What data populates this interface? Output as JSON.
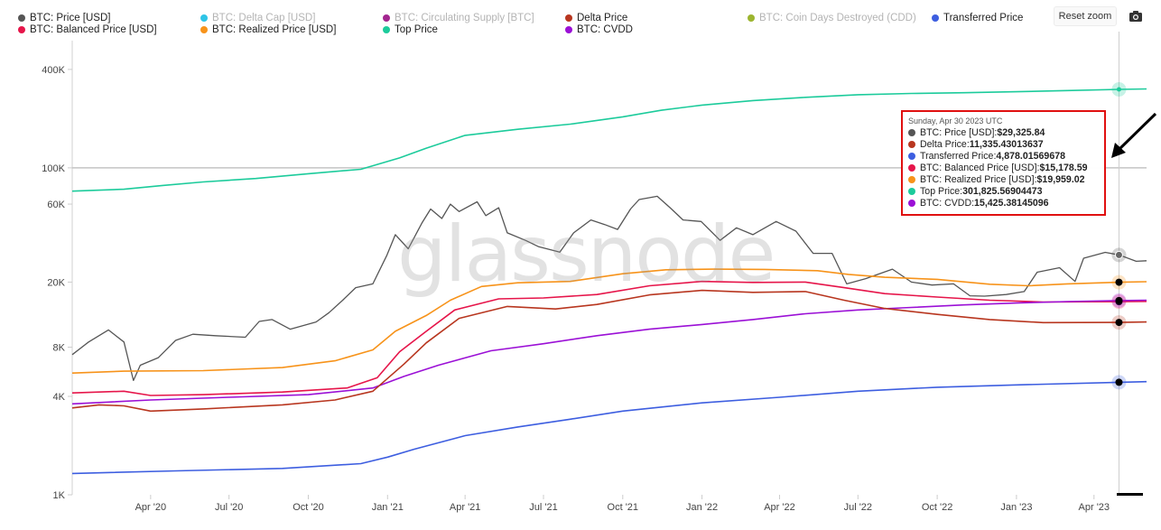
{
  "legend": [
    {
      "label": "BTC: Price [USD]",
      "color": "#555555",
      "enabled": true
    },
    {
      "label": "BTC: Delta Cap [USD]",
      "color": "#2ec4e6",
      "enabled": false
    },
    {
      "label": "BTC: Circulating Supply [BTC]",
      "color": "#a3258f",
      "enabled": false
    },
    {
      "label": "Delta Price",
      "color": "#b8361f",
      "enabled": true
    },
    {
      "label": "BTC: Coin Days Destroyed (CDD)",
      "color": "#9cb52f",
      "enabled": false
    },
    {
      "label": "Transferred Price",
      "color": "#3d5ee0",
      "enabled": true
    },
    {
      "label": "BTC: Balanced Price [USD]",
      "color": "#e6154a",
      "enabled": true
    },
    {
      "label": "BTC: Realized Price [USD]",
      "color": "#f7931a",
      "enabled": true
    },
    {
      "label": "Top Price",
      "color": "#1ccb9b",
      "enabled": true
    },
    {
      "label": "BTC: CVDD",
      "color": "#9b10d6",
      "enabled": true
    }
  ],
  "controls": {
    "reset_zoom_label": "Reset zoom",
    "camera_icon": "camera-icon"
  },
  "watermark": "glassnode",
  "tooltip": {
    "date": "Sunday, Apr 30 2023 UTC",
    "rows": [
      {
        "label": "BTC: Price [USD]",
        "value": "$29,325.84",
        "color": "#555555"
      },
      {
        "label": "Delta Price",
        "value": "11,335.43013637",
        "color": "#b8361f"
      },
      {
        "label": "Transferred Price",
        "value": "4,878.01569678",
        "color": "#3d5ee0"
      },
      {
        "label": "BTC: Balanced Price [USD]",
        "value": "$15,178.59",
        "color": "#e6154a"
      },
      {
        "label": "BTC: Realized Price [USD]",
        "value": "$19,959.02",
        "color": "#f7931a"
      },
      {
        "label": "Top Price",
        "value": "301,825.56904473",
        "color": "#1ccb9b"
      },
      {
        "label": "BTC: CVDD",
        "value": "15,425.38145096",
        "color": "#9b10d6"
      }
    ]
  },
  "chart_data": {
    "type": "line",
    "y_scale": "log",
    "ylim": [
      1000,
      600000
    ],
    "y_ticks": [
      {
        "value": 1000,
        "label": "1K"
      },
      {
        "value": 4000,
        "label": "4K"
      },
      {
        "value": 8000,
        "label": "8K"
      },
      {
        "value": 20000,
        "label": "20K"
      },
      {
        "value": 60000,
        "label": "60K"
      },
      {
        "value": 100000,
        "label": "100K"
      },
      {
        "value": 400000,
        "label": "400K"
      }
    ],
    "x_range": [
      "2020-01-01",
      "2023-06-01"
    ],
    "x_ticks": [
      {
        "date": "2020-04-01",
        "label": "Apr '20"
      },
      {
        "date": "2020-07-01",
        "label": "Jul '20"
      },
      {
        "date": "2020-10-01",
        "label": "Oct '20"
      },
      {
        "date": "2021-01-01",
        "label": "Jan '21"
      },
      {
        "date": "2021-04-01",
        "label": "Apr '21"
      },
      {
        "date": "2021-07-01",
        "label": "Jul '21"
      },
      {
        "date": "2021-10-01",
        "label": "Oct '21"
      },
      {
        "date": "2022-01-01",
        "label": "Jan '22"
      },
      {
        "date": "2022-04-01",
        "label": "Apr '22"
      },
      {
        "date": "2022-07-01",
        "label": "Jul '22"
      },
      {
        "date": "2022-10-01",
        "label": "Oct '22"
      },
      {
        "date": "2023-01-01",
        "label": "Jan '23"
      },
      {
        "date": "2023-04-01",
        "label": "Apr '23"
      }
    ],
    "highlight_date": "2023-04-30",
    "series": [
      {
        "name": "Top Price",
        "color": "#1ccb9b",
        "width": 1.6,
        "points": [
          [
            "2020-01-01",
            72000
          ],
          [
            "2020-03-01",
            74000
          ],
          [
            "2020-04-15",
            78000
          ],
          [
            "2020-06-01",
            82000
          ],
          [
            "2020-08-01",
            86000
          ],
          [
            "2020-10-01",
            92000
          ],
          [
            "2020-12-01",
            98000
          ],
          [
            "2021-01-15",
            115000
          ],
          [
            "2021-02-15",
            132000
          ],
          [
            "2021-04-01",
            158000
          ],
          [
            "2021-06-01",
            172000
          ],
          [
            "2021-08-01",
            185000
          ],
          [
            "2021-10-01",
            205000
          ],
          [
            "2021-11-15",
            225000
          ],
          [
            "2022-01-01",
            242000
          ],
          [
            "2022-03-01",
            258000
          ],
          [
            "2022-05-01",
            270000
          ],
          [
            "2022-07-01",
            280000
          ],
          [
            "2022-09-01",
            285000
          ],
          [
            "2022-11-01",
            288000
          ],
          [
            "2023-01-01",
            292000
          ],
          [
            "2023-03-01",
            297000
          ],
          [
            "2023-04-30",
            301825
          ],
          [
            "2023-06-01",
            304000
          ]
        ]
      },
      {
        "name": "BTC: Price [USD]",
        "color": "#555555",
        "width": 1.3,
        "points": [
          [
            "2020-01-01",
            7200
          ],
          [
            "2020-01-20",
            8600
          ],
          [
            "2020-02-12",
            10200
          ],
          [
            "2020-03-01",
            8600
          ],
          [
            "2020-03-12",
            5000
          ],
          [
            "2020-03-20",
            6200
          ],
          [
            "2020-04-10",
            6900
          ],
          [
            "2020-04-30",
            8800
          ],
          [
            "2020-05-20",
            9600
          ],
          [
            "2020-06-15",
            9400
          ],
          [
            "2020-07-20",
            9200
          ],
          [
            "2020-08-05",
            11500
          ],
          [
            "2020-08-20",
            11800
          ],
          [
            "2020-09-10",
            10300
          ],
          [
            "2020-10-10",
            11400
          ],
          [
            "2020-10-25",
            13000
          ],
          [
            "2020-11-10",
            15500
          ],
          [
            "2020-11-25",
            18500
          ],
          [
            "2020-12-15",
            19500
          ],
          [
            "2020-12-31",
            29000
          ],
          [
            "2021-01-10",
            39000
          ],
          [
            "2021-01-25",
            32000
          ],
          [
            "2021-02-10",
            46000
          ],
          [
            "2021-02-20",
            56000
          ],
          [
            "2021-03-05",
            49000
          ],
          [
            "2021-03-15",
            60000
          ],
          [
            "2021-03-25",
            54000
          ],
          [
            "2021-04-15",
            62000
          ],
          [
            "2021-04-25",
            51000
          ],
          [
            "2021-05-10",
            57000
          ],
          [
            "2021-05-20",
            40000
          ],
          [
            "2021-06-10",
            36000
          ],
          [
            "2021-06-25",
            33000
          ],
          [
            "2021-07-20",
            30500
          ],
          [
            "2021-08-05",
            40000
          ],
          [
            "2021-08-25",
            48000
          ],
          [
            "2021-09-10",
            45000
          ],
          [
            "2021-09-25",
            42000
          ],
          [
            "2021-10-10",
            56000
          ],
          [
            "2021-10-20",
            64000
          ],
          [
            "2021-11-10",
            67000
          ],
          [
            "2021-11-25",
            57000
          ],
          [
            "2021-12-10",
            48000
          ],
          [
            "2021-12-31",
            47000
          ],
          [
            "2022-01-22",
            36000
          ],
          [
            "2022-02-10",
            43000
          ],
          [
            "2022-03-01",
            39000
          ],
          [
            "2022-03-28",
            47000
          ],
          [
            "2022-04-20",
            41000
          ],
          [
            "2022-05-10",
            30000
          ],
          [
            "2022-06-01",
            30000
          ],
          [
            "2022-06-18",
            19500
          ],
          [
            "2022-07-10",
            21000
          ],
          [
            "2022-08-10",
            24000
          ],
          [
            "2022-09-01",
            20000
          ],
          [
            "2022-09-25",
            19200
          ],
          [
            "2022-10-20",
            19500
          ],
          [
            "2022-11-08",
            16500
          ],
          [
            "2022-11-25",
            16400
          ],
          [
            "2022-12-20",
            16800
          ],
          [
            "2023-01-10",
            17500
          ],
          [
            "2023-01-25",
            23000
          ],
          [
            "2023-02-20",
            24500
          ],
          [
            "2023-03-10",
            20200
          ],
          [
            "2023-03-20",
            28000
          ],
          [
            "2023-04-14",
            30400
          ],
          [
            "2023-04-30",
            29325
          ],
          [
            "2023-05-20",
            26800
          ],
          [
            "2023-06-01",
            27000
          ]
        ]
      },
      {
        "name": "BTC: Realized Price [USD]",
        "color": "#f7931a",
        "width": 1.6,
        "points": [
          [
            "2020-01-01",
            5550
          ],
          [
            "2020-03-01",
            5700
          ],
          [
            "2020-06-01",
            5750
          ],
          [
            "2020-09-01",
            6000
          ],
          [
            "2020-11-01",
            6600
          ],
          [
            "2020-12-15",
            7700
          ],
          [
            "2021-01-10",
            10000
          ],
          [
            "2021-02-15",
            12500
          ],
          [
            "2021-03-15",
            15500
          ],
          [
            "2021-04-20",
            18800
          ],
          [
            "2021-06-01",
            19800
          ],
          [
            "2021-08-01",
            20200
          ],
          [
            "2021-10-01",
            22500
          ],
          [
            "2021-11-20",
            23800
          ],
          [
            "2022-01-15",
            24000
          ],
          [
            "2022-03-15",
            23900
          ],
          [
            "2022-05-15",
            23500
          ],
          [
            "2022-06-20",
            22300
          ],
          [
            "2022-08-01",
            21400
          ],
          [
            "2022-10-01",
            20800
          ],
          [
            "2022-12-01",
            19400
          ],
          [
            "2023-01-15",
            19000
          ],
          [
            "2023-03-01",
            19500
          ],
          [
            "2023-04-30",
            19959
          ],
          [
            "2023-06-01",
            20100
          ]
        ]
      },
      {
        "name": "BTC: Balanced Price [USD]",
        "color": "#e6154a",
        "width": 1.6,
        "points": [
          [
            "2020-01-01",
            4200
          ],
          [
            "2020-03-01",
            4300
          ],
          [
            "2020-04-01",
            4050
          ],
          [
            "2020-06-01",
            4100
          ],
          [
            "2020-09-01",
            4250
          ],
          [
            "2020-11-15",
            4500
          ],
          [
            "2020-12-20",
            5200
          ],
          [
            "2021-01-15",
            7500
          ],
          [
            "2021-02-15",
            10000
          ],
          [
            "2021-03-20",
            13500
          ],
          [
            "2021-05-10",
            15800
          ],
          [
            "2021-07-01",
            16000
          ],
          [
            "2021-09-01",
            16800
          ],
          [
            "2021-11-01",
            19000
          ],
          [
            "2022-01-01",
            20200
          ],
          [
            "2022-03-01",
            19900
          ],
          [
            "2022-05-01",
            20000
          ],
          [
            "2022-06-15",
            18500
          ],
          [
            "2022-08-01",
            17000
          ],
          [
            "2022-10-01",
            16200
          ],
          [
            "2022-12-01",
            15500
          ],
          [
            "2023-02-01",
            15100
          ],
          [
            "2023-04-30",
            15178
          ],
          [
            "2023-06-01",
            15250
          ]
        ]
      },
      {
        "name": "BTC: CVDD",
        "color": "#9b10d6",
        "width": 1.6,
        "points": [
          [
            "2020-01-01",
            3600
          ],
          [
            "2020-04-01",
            3800
          ],
          [
            "2020-07-01",
            3950
          ],
          [
            "2020-10-01",
            4100
          ],
          [
            "2020-12-15",
            4500
          ],
          [
            "2021-01-20",
            5300
          ],
          [
            "2021-03-01",
            6200
          ],
          [
            "2021-05-01",
            7600
          ],
          [
            "2021-07-01",
            8400
          ],
          [
            "2021-09-01",
            9400
          ],
          [
            "2021-11-01",
            10300
          ],
          [
            "2022-01-01",
            11000
          ],
          [
            "2022-03-01",
            11800
          ],
          [
            "2022-05-01",
            12800
          ],
          [
            "2022-07-01",
            13500
          ],
          [
            "2022-09-01",
            14000
          ],
          [
            "2022-11-01",
            14500
          ],
          [
            "2023-01-01",
            14900
          ],
          [
            "2023-03-01",
            15200
          ],
          [
            "2023-04-30",
            15425
          ],
          [
            "2023-06-01",
            15500
          ]
        ]
      },
      {
        "name": "Delta Price",
        "color": "#b8361f",
        "width": 1.6,
        "points": [
          [
            "2020-01-01",
            3400
          ],
          [
            "2020-02-01",
            3550
          ],
          [
            "2020-03-01",
            3500
          ],
          [
            "2020-04-01",
            3250
          ],
          [
            "2020-06-01",
            3350
          ],
          [
            "2020-09-01",
            3550
          ],
          [
            "2020-11-01",
            3800
          ],
          [
            "2020-12-15",
            4300
          ],
          [
            "2021-01-20",
            6300
          ],
          [
            "2021-02-15",
            8500
          ],
          [
            "2021-03-25",
            12000
          ],
          [
            "2021-05-20",
            14200
          ],
          [
            "2021-07-15",
            13700
          ],
          [
            "2021-09-01",
            14600
          ],
          [
            "2021-11-01",
            16700
          ],
          [
            "2022-01-01",
            17800
          ],
          [
            "2022-03-01",
            17300
          ],
          [
            "2022-05-01",
            17500
          ],
          [
            "2022-06-15",
            15500
          ],
          [
            "2022-08-01",
            13800
          ],
          [
            "2022-10-01",
            12700
          ],
          [
            "2022-12-01",
            11800
          ],
          [
            "2023-02-01",
            11300
          ],
          [
            "2023-04-30",
            11335
          ],
          [
            "2023-06-01",
            11400
          ]
        ]
      },
      {
        "name": "Transferred Price",
        "color": "#3d5ee0",
        "width": 1.6,
        "points": [
          [
            "2020-01-01",
            1350
          ],
          [
            "2020-05-01",
            1400
          ],
          [
            "2020-09-01",
            1450
          ],
          [
            "2020-12-01",
            1550
          ],
          [
            "2021-01-01",
            1700
          ],
          [
            "2021-02-01",
            1900
          ],
          [
            "2021-04-01",
            2300
          ],
          [
            "2021-06-01",
            2600
          ],
          [
            "2021-08-01",
            2900
          ],
          [
            "2021-10-01",
            3250
          ],
          [
            "2022-01-01",
            3650
          ],
          [
            "2022-04-01",
            3950
          ],
          [
            "2022-07-01",
            4300
          ],
          [
            "2022-10-01",
            4550
          ],
          [
            "2023-01-01",
            4700
          ],
          [
            "2023-04-30",
            4878
          ],
          [
            "2023-06-01",
            4920
          ]
        ]
      }
    ]
  }
}
